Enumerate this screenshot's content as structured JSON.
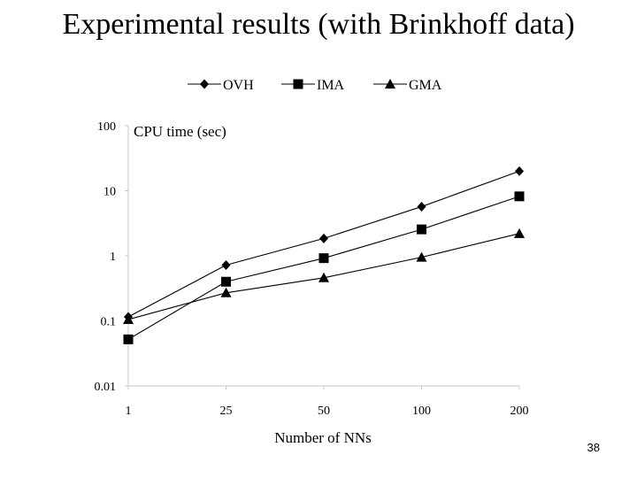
{
  "slide": {
    "title": "Experimental results (with Brinkhoff data)",
    "page_number": "38"
  },
  "chart_data": {
    "type": "line",
    "title": "",
    "ylabel": "CPU time (sec)",
    "xlabel": "Number of NNs",
    "yscale": "log",
    "ylim": [
      0.01,
      100
    ],
    "y_ticks": [
      "100",
      "10",
      "1",
      "0.1",
      "0.01"
    ],
    "y_tick_values": [
      100,
      10,
      1,
      0.1,
      0.01
    ],
    "categories": [
      "1",
      "25",
      "50",
      "100",
      "200"
    ],
    "legend_position": "top",
    "series": [
      {
        "name": "OVH",
        "marker": "diamond",
        "values": [
          0.115,
          0.72,
          1.85,
          5.7,
          20
        ]
      },
      {
        "name": "IMA",
        "marker": "square",
        "values": [
          0.052,
          0.4,
          0.92,
          2.55,
          8.2
        ]
      },
      {
        "name": "GMA",
        "marker": "triangle",
        "values": [
          0.105,
          0.27,
          0.46,
          0.95,
          2.2
        ]
      }
    ]
  }
}
